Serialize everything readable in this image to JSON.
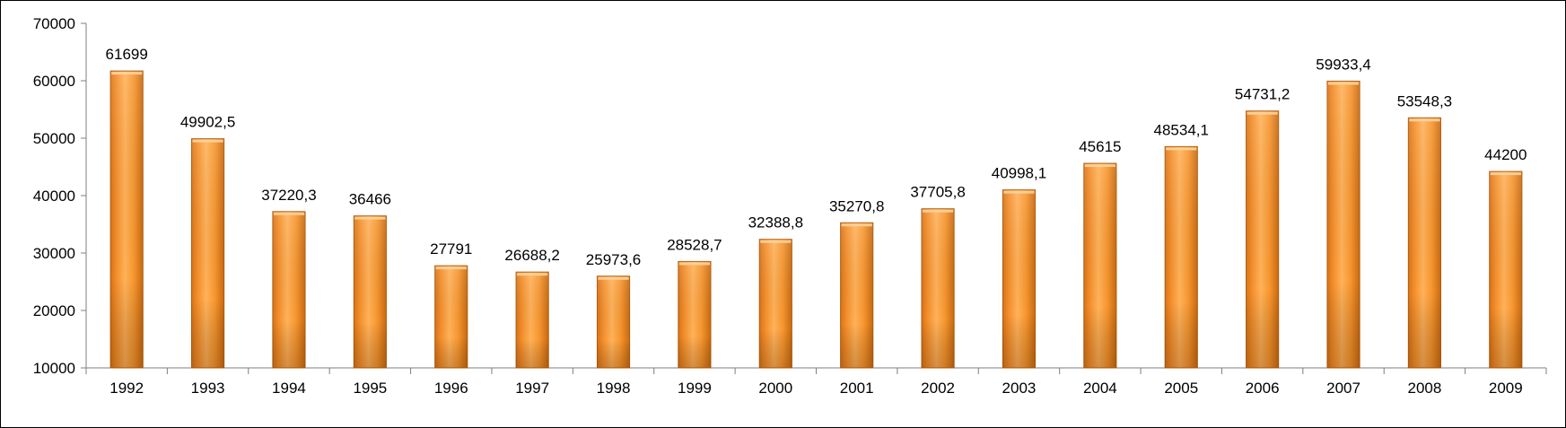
{
  "chart_data": {
    "type": "bar",
    "title": "",
    "xlabel": "",
    "ylabel": "",
    "ylim": [
      10000,
      70000
    ],
    "y_ticks": [
      10000,
      20000,
      30000,
      40000,
      50000,
      60000,
      70000
    ],
    "grid": false,
    "legend": "none",
    "bar_color": "#F7962F",
    "bar_dark_color": "#C86A10",
    "categories": [
      "1992",
      "1993",
      "1994",
      "1995",
      "1996",
      "1997",
      "1998",
      "1999",
      "2000",
      "2001",
      "2002",
      "2003",
      "2004",
      "2005",
      "2006",
      "2007",
      "2008",
      "2009"
    ],
    "values": [
      61699,
      49902.5,
      37220.3,
      36466,
      27791,
      26688.2,
      25973.6,
      28528.7,
      32388.8,
      35270.8,
      37705.8,
      40998.1,
      45615,
      48534.1,
      54731.2,
      59933.4,
      53548.3,
      44200
    ],
    "value_labels": [
      "61699",
      "49902,5",
      "37220,3",
      "36466",
      "27791",
      "26688,2",
      "25973,6",
      "28528,7",
      "32388,8",
      "35270,8",
      "37705,8",
      "40998,1",
      "45615",
      "48534,1",
      "54731,2",
      "59933,4",
      "53548,3",
      "44200"
    ]
  }
}
